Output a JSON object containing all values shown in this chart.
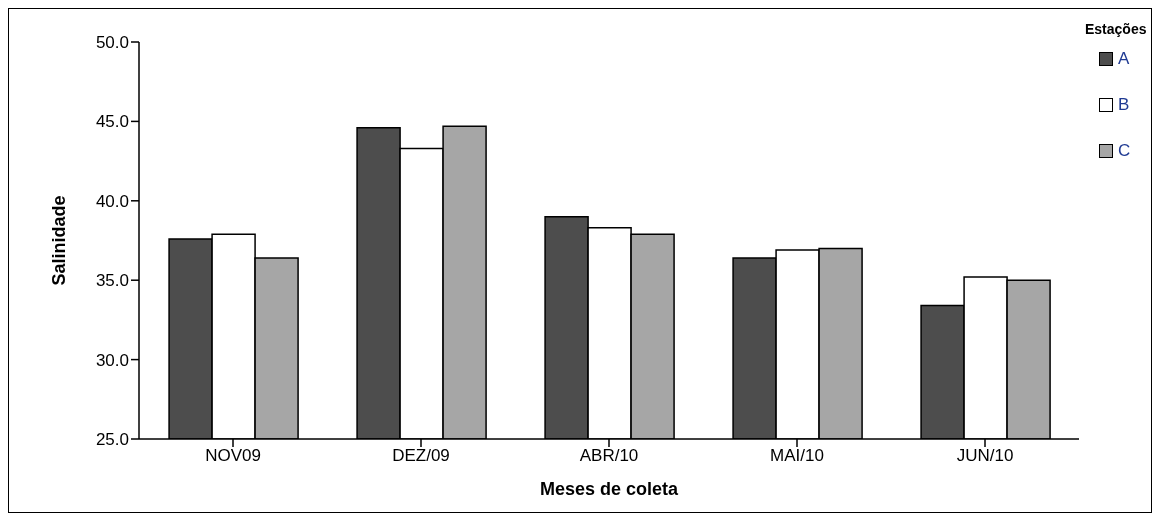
{
  "chart_data": {
    "type": "bar",
    "xlabel": "Meses de coleta",
    "ylabel": "Salinidade",
    "legend_title": "Estações",
    "categories": [
      "NOV09",
      "DEZ/09",
      "ABR/10",
      "MAI/10",
      "JUN/10"
    ],
    "series": [
      {
        "name": "A",
        "color": "#4d4d4d",
        "values": [
          37.6,
          44.6,
          39.0,
          36.4,
          33.4
        ]
      },
      {
        "name": "B",
        "color": "#ffffff",
        "values": [
          37.9,
          43.3,
          38.3,
          36.9,
          35.2
        ]
      },
      {
        "name": "C",
        "color": "#a6a6a6",
        "values": [
          36.4,
          44.7,
          37.9,
          37.0,
          35.0
        ]
      }
    ],
    "ylim": [
      25,
      50
    ],
    "yticks": [
      {
        "value": 25,
        "label": "25.0"
      },
      {
        "value": 30,
        "label": "30.0"
      },
      {
        "value": 35,
        "label": "35.0"
      },
      {
        "value": 40,
        "label": "40.0"
      },
      {
        "value": 45,
        "label": "45.0"
      },
      {
        "value": 50,
        "label": "50.0"
      }
    ],
    "grid": false,
    "legend": "top right"
  }
}
